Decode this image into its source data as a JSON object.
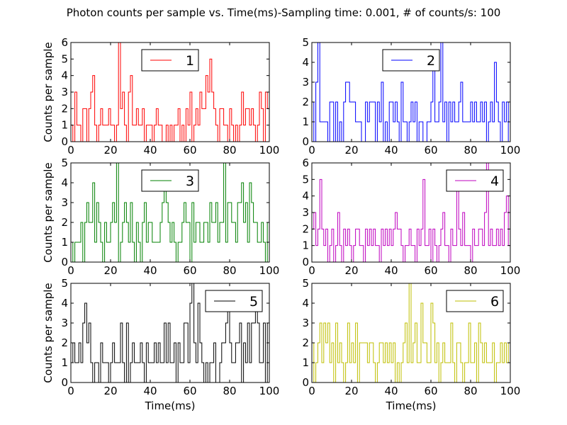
{
  "figure": {
    "title": "Photon counts per sample vs. Time(ms)-Sampling time: 0.001, # of counts/s: 100"
  },
  "chart_data": [
    {
      "type": "line",
      "step": true,
      "panel": 1,
      "xlabel": "",
      "ylabel": "Counts per sample",
      "xlim": [
        0,
        100
      ],
      "ylim": [
        0,
        6
      ],
      "xticks": [
        0,
        20,
        40,
        60,
        80,
        100
      ],
      "yticks": [
        0,
        1,
        2,
        3,
        4,
        5,
        6
      ],
      "legend": {
        "position": "upper-center"
      },
      "series": [
        {
          "name": "1",
          "color": "#ff0000",
          "values": [
            1,
            0,
            3,
            1,
            1,
            0,
            2,
            2,
            0,
            2,
            3,
            4,
            1,
            0,
            1,
            2,
            1,
            1,
            1,
            2,
            1,
            1,
            0,
            1,
            6,
            2,
            3,
            1,
            0,
            3,
            4,
            1,
            1,
            2,
            1,
            1,
            2,
            0,
            1,
            1,
            1,
            0,
            1,
            2,
            1,
            1,
            0,
            0,
            1,
            0,
            1,
            0,
            1,
            1,
            2,
            0,
            1,
            0,
            2,
            1,
            3,
            0,
            1,
            2,
            1,
            3,
            2,
            2,
            4,
            3,
            5,
            3,
            2,
            1,
            0,
            2,
            2,
            1,
            1,
            0,
            2,
            1,
            0,
            1,
            0,
            1,
            3,
            1,
            2,
            2,
            1,
            2,
            1,
            0,
            1,
            3,
            2,
            0,
            3,
            2
          ]
        }
      ]
    },
    {
      "type": "line",
      "step": true,
      "panel": 2,
      "xlabel": "",
      "ylabel": "",
      "xlim": [
        0,
        100
      ],
      "ylim": [
        0,
        5
      ],
      "xticks": [
        0,
        20,
        40,
        60,
        80,
        100
      ],
      "yticks": [
        0,
        1,
        2,
        3,
        4,
        5
      ],
      "legend": {
        "position": "upper-center"
      },
      "series": [
        {
          "name": "2",
          "color": "#0000ff",
          "values": [
            2,
            0,
            3,
            5,
            1,
            1,
            1,
            1,
            0,
            2,
            2,
            0,
            2,
            0,
            1,
            0,
            2,
            3,
            3,
            2,
            2,
            2,
            1,
            1,
            1,
            0,
            0,
            2,
            1,
            2,
            2,
            2,
            0,
            2,
            1,
            3,
            0,
            1,
            0,
            2,
            2,
            1,
            2,
            1,
            0,
            3,
            1,
            1,
            0,
            1,
            2,
            1,
            2,
            0,
            1,
            1,
            0,
            0,
            1,
            1,
            2,
            4,
            1,
            1,
            2,
            5,
            1,
            2,
            0,
            2,
            1,
            2,
            1,
            1,
            2,
            3,
            1,
            1,
            1,
            1,
            2,
            1,
            2,
            1,
            1,
            2,
            1,
            2,
            0,
            1,
            2,
            1,
            4,
            2,
            1,
            0,
            2,
            1,
            2,
            0
          ]
        }
      ]
    },
    {
      "type": "line",
      "step": true,
      "panel": 3,
      "xlabel": "",
      "ylabel": "Counts per sample",
      "xlim": [
        0,
        100
      ],
      "ylim": [
        0,
        5
      ],
      "xticks": [
        0,
        20,
        40,
        60,
        80,
        100
      ],
      "yticks": [
        0,
        1,
        2,
        3,
        4,
        5
      ],
      "legend": {
        "position": "upper-center"
      },
      "series": [
        {
          "name": "3",
          "color": "#008000",
          "values": [
            1,
            0,
            1,
            1,
            1,
            2,
            0,
            2,
            3,
            2,
            2,
            4,
            1,
            3,
            2,
            1,
            0,
            2,
            1,
            1,
            2,
            3,
            2,
            5,
            0,
            1,
            2,
            3,
            2,
            1,
            3,
            1,
            0,
            2,
            1,
            0,
            2,
            3,
            1,
            2,
            2,
            1,
            1,
            1,
            1,
            2,
            3,
            4,
            3,
            2,
            1,
            2,
            1,
            0,
            1,
            1,
            2,
            3,
            2,
            2,
            0,
            3,
            1,
            2,
            2,
            1,
            1,
            2,
            2,
            1,
            3,
            2,
            2,
            3,
            1,
            2,
            2,
            5,
            1,
            3,
            3,
            2,
            2,
            1,
            3,
            3,
            4,
            2,
            3,
            1,
            4,
            3,
            2,
            2,
            1,
            1,
            2,
            1,
            0,
            2
          ]
        }
      ]
    },
    {
      "type": "line",
      "step": true,
      "panel": 4,
      "xlabel": "",
      "ylabel": "",
      "xlim": [
        0,
        100
      ],
      "ylim": [
        0,
        6
      ],
      "xticks": [
        0,
        20,
        40,
        60,
        80,
        100
      ],
      "yticks": [
        0,
        1,
        2,
        3,
        4,
        5,
        6
      ],
      "legend": {
        "position": "upper-right"
      },
      "series": [
        {
          "name": "4",
          "color": "#bf00bf",
          "values": [
            2,
            3,
            1,
            2,
            5,
            2,
            1,
            2,
            0,
            1,
            2,
            0,
            1,
            3,
            1,
            0,
            2,
            1,
            2,
            1,
            0,
            1,
            2,
            2,
            1,
            1,
            0,
            2,
            1,
            2,
            1,
            2,
            1,
            1,
            0,
            2,
            1,
            2,
            1,
            2,
            1,
            2,
            3,
            2,
            2,
            1,
            0,
            1,
            1,
            2,
            1,
            1,
            0,
            2,
            1,
            2,
            5,
            1,
            1,
            2,
            0,
            2,
            1,
            0,
            1,
            2,
            3,
            1,
            1,
            0,
            2,
            1,
            1,
            5,
            2,
            1,
            3,
            1,
            1,
            1,
            0,
            2,
            1,
            1,
            2,
            2,
            1,
            3,
            6,
            1,
            2,
            1,
            1,
            2,
            1,
            2,
            1,
            3,
            4,
            1
          ]
        }
      ]
    },
    {
      "type": "line",
      "step": true,
      "panel": 5,
      "xlabel": "Time(ms)",
      "ylabel": "Counts per sample",
      "xlim": [
        0,
        100
      ],
      "ylim": [
        0,
        5
      ],
      "xticks": [
        0,
        20,
        40,
        60,
        80,
        100
      ],
      "yticks": [
        0,
        1,
        2,
        3,
        4,
        5
      ],
      "legend": {
        "position": "upper-right"
      },
      "series": [
        {
          "name": "5",
          "color": "#000000",
          "values": [
            1,
            2,
            1,
            1,
            2,
            1,
            3,
            4,
            2,
            3,
            1,
            0,
            1,
            1,
            0,
            2,
            1,
            1,
            1,
            0,
            1,
            2,
            1,
            1,
            1,
            3,
            1,
            0,
            3,
            0,
            1,
            2,
            1,
            1,
            1,
            2,
            1,
            0,
            2,
            1,
            1,
            1,
            2,
            1,
            2,
            1,
            1,
            3,
            1,
            3,
            1,
            1,
            2,
            0,
            2,
            1,
            1,
            3,
            3,
            1,
            4,
            5,
            2,
            1,
            4,
            2,
            1,
            0,
            1,
            0,
            1,
            1,
            2,
            0,
            0,
            1,
            2,
            2,
            3,
            4,
            2,
            1,
            1,
            2,
            2,
            3,
            0,
            2,
            1,
            3,
            1,
            3,
            3,
            4,
            3,
            1,
            1,
            3,
            0,
            3
          ]
        }
      ]
    },
    {
      "type": "line",
      "step": true,
      "panel": 6,
      "xlabel": "Time(ms)",
      "ylabel": "",
      "xlim": [
        0,
        100
      ],
      "ylim": [
        0,
        5
      ],
      "xticks": [
        0,
        20,
        40,
        60,
        80,
        100
      ],
      "yticks": [
        0,
        1,
        2,
        3,
        4,
        5
      ],
      "legend": {
        "position": "upper-right"
      },
      "series": [
        {
          "name": "6",
          "color": "#bfbf00",
          "values": [
            2,
            0,
            1,
            2,
            3,
            1,
            3,
            2,
            3,
            1,
            2,
            0,
            3,
            1,
            2,
            1,
            0,
            1,
            3,
            1,
            2,
            1,
            3,
            0,
            2,
            2,
            2,
            2,
            1,
            2,
            2,
            1,
            0,
            1,
            2,
            2,
            1,
            2,
            1,
            2,
            1,
            2,
            0,
            1,
            0,
            1,
            2,
            3,
            1,
            5,
            1,
            2,
            3,
            1,
            1,
            4,
            2,
            2,
            1,
            1,
            4,
            3,
            1,
            2,
            0,
            1,
            2,
            1,
            1,
            1,
            3,
            1,
            0,
            2,
            2,
            1,
            0,
            1,
            1,
            3,
            1,
            1,
            2,
            0,
            3,
            2,
            1,
            2,
            1,
            1,
            1,
            2,
            0,
            1,
            1,
            2,
            1,
            2,
            1,
            2
          ]
        }
      ]
    }
  ]
}
